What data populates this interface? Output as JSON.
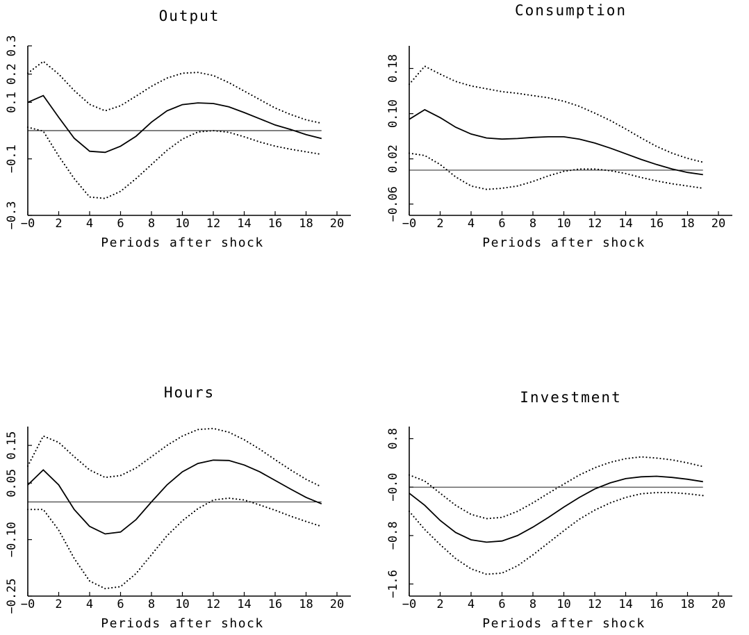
{
  "chart_data": [
    {
      "type": "line",
      "title": "Output",
      "xlabel": "Periods after shock",
      "ylabel": "",
      "xlim": [
        0,
        20
      ],
      "ylim": [
        -0.3,
        0.3
      ],
      "xticks": [
        0,
        2,
        4,
        6,
        8,
        10,
        12,
        14,
        16,
        18,
        20
      ],
      "xtick_labels": [
        "−0",
        "2",
        "4",
        "6",
        "8",
        "10",
        "12",
        "14",
        "16",
        "18",
        "20"
      ],
      "yticks": [
        -0.3,
        -0.1,
        0.1,
        0.2,
        0.3
      ],
      "ytick_labels": [
        "−0.3",
        "−0.1",
        "0.1",
        "0.2",
        "0.3"
      ],
      "zero_line": 0,
      "grid": false,
      "x": [
        0,
        1,
        2,
        3,
        4,
        5,
        6,
        7,
        8,
        9,
        10,
        11,
        12,
        13,
        14,
        15,
        16,
        17,
        18,
        19
      ],
      "series": [
        {
          "style": "solid",
          "values": [
            0.1,
            0.124,
            0.047,
            -0.027,
            -0.073,
            -0.077,
            -0.055,
            -0.02,
            0.03,
            0.07,
            0.092,
            0.098,
            0.096,
            0.084,
            0.064,
            0.042,
            0.02,
            0.004,
            -0.014,
            -0.028
          ]
        },
        {
          "style": "dotted",
          "values": [
            0.203,
            0.245,
            0.2,
            0.142,
            0.093,
            0.07,
            0.088,
            0.122,
            0.157,
            0.186,
            0.203,
            0.206,
            0.195,
            0.17,
            0.14,
            0.11,
            0.08,
            0.057,
            0.038,
            0.026
          ]
        },
        {
          "style": "dotted",
          "values": [
            0.012,
            -0.002,
            -0.09,
            -0.17,
            -0.235,
            -0.24,
            -0.215,
            -0.17,
            -0.12,
            -0.07,
            -0.03,
            -0.005,
            0.0,
            -0.006,
            -0.022,
            -0.04,
            -0.055,
            -0.066,
            -0.075,
            -0.084
          ]
        }
      ]
    },
    {
      "type": "line",
      "title": "Consumption",
      "xlabel": "Periods after shock",
      "ylabel": "",
      "xlim": [
        0,
        20
      ],
      "ylim": [
        -0.08,
        0.22
      ],
      "xticks": [
        0,
        2,
        4,
        6,
        8,
        10,
        12,
        14,
        16,
        18,
        20
      ],
      "xtick_labels": [
        "−0",
        "2",
        "4",
        "6",
        "8",
        "10",
        "12",
        "14",
        "16",
        "18",
        "20"
      ],
      "yticks": [
        -0.06,
        0.02,
        0.1,
        0.18
      ],
      "ytick_labels": [
        "−0.06",
        "0.02",
        "0.10",
        "0.18"
      ],
      "zero_line": 0,
      "grid": false,
      "x": [
        0,
        1,
        2,
        3,
        4,
        5,
        6,
        7,
        8,
        9,
        10,
        11,
        12,
        13,
        14,
        15,
        16,
        17,
        18,
        19
      ],
      "series": [
        {
          "style": "solid",
          "values": [
            0.09,
            0.107,
            0.093,
            0.076,
            0.064,
            0.057,
            0.055,
            0.056,
            0.058,
            0.059,
            0.059,
            0.055,
            0.048,
            0.039,
            0.029,
            0.019,
            0.01,
            0.002,
            -0.004,
            -0.008
          ]
        },
        {
          "style": "dotted",
          "values": [
            0.152,
            0.184,
            0.17,
            0.157,
            0.149,
            0.144,
            0.139,
            0.136,
            0.132,
            0.128,
            0.122,
            0.113,
            0.101,
            0.088,
            0.073,
            0.057,
            0.042,
            0.03,
            0.021,
            0.014
          ]
        },
        {
          "style": "dotted",
          "values": [
            0.03,
            0.026,
            0.01,
            -0.012,
            -0.028,
            -0.034,
            -0.032,
            -0.028,
            -0.02,
            -0.01,
            -0.002,
            0.002,
            0.002,
            -0.001,
            -0.006,
            -0.013,
            -0.019,
            -0.024,
            -0.028,
            -0.032
          ]
        }
      ]
    },
    {
      "type": "line",
      "title": "Hours",
      "xlabel": "Periods after shock",
      "ylabel": "",
      "xlim": [
        0,
        20
      ],
      "ylim": [
        -0.25,
        0.2
      ],
      "xticks": [
        0,
        2,
        4,
        6,
        8,
        10,
        12,
        14,
        16,
        18,
        20
      ],
      "xtick_labels": [
        "−0",
        "2",
        "4",
        "6",
        "8",
        "10",
        "12",
        "14",
        "16",
        "18",
        "20"
      ],
      "yticks": [
        -0.25,
        -0.1,
        0.05,
        0.15
      ],
      "ytick_labels": [
        "−0.25",
        "−0.10",
        "0.05",
        "0.15"
      ],
      "zero_line": 0,
      "grid": false,
      "x": [
        0,
        1,
        2,
        3,
        4,
        5,
        6,
        7,
        8,
        9,
        10,
        11,
        12,
        13,
        14,
        15,
        16,
        17,
        18,
        19
      ],
      "series": [
        {
          "style": "solid",
          "values": [
            0.045,
            0.085,
            0.045,
            -0.02,
            -0.065,
            -0.085,
            -0.08,
            -0.047,
            0.0,
            0.045,
            0.08,
            0.102,
            0.111,
            0.11,
            0.098,
            0.08,
            0.057,
            0.034,
            0.012,
            -0.005
          ]
        },
        {
          "style": "dotted",
          "values": [
            0.095,
            0.175,
            0.158,
            0.12,
            0.085,
            0.065,
            0.07,
            0.09,
            0.12,
            0.15,
            0.175,
            0.192,
            0.195,
            0.185,
            0.165,
            0.14,
            0.112,
            0.085,
            0.06,
            0.04
          ]
        },
        {
          "style": "dotted",
          "values": [
            -0.02,
            -0.02,
            -0.075,
            -0.15,
            -0.21,
            -0.23,
            -0.225,
            -0.19,
            -0.14,
            -0.09,
            -0.05,
            -0.018,
            0.005,
            0.01,
            0.005,
            -0.008,
            -0.022,
            -0.038,
            -0.052,
            -0.065
          ]
        }
      ]
    },
    {
      "type": "line",
      "title": "Investment",
      "xlabel": "Periods after shock",
      "ylabel": "",
      "xlim": [
        0,
        20
      ],
      "ylim": [
        -1.8,
        1.0
      ],
      "xticks": [
        0,
        2,
        4,
        6,
        8,
        10,
        12,
        14,
        16,
        18,
        20
      ],
      "xtick_labels": [
        "−0",
        "2",
        "4",
        "6",
        "8",
        "10",
        "12",
        "14",
        "16",
        "18",
        "20"
      ],
      "yticks": [
        -1.6,
        -0.8,
        0.0,
        0.8
      ],
      "ytick_labels": [
        "−1.6",
        "−0.8",
        "−0.0",
        "0.8"
      ],
      "zero_line": 0,
      "grid": false,
      "x": [
        0,
        1,
        2,
        3,
        4,
        5,
        6,
        7,
        8,
        9,
        10,
        11,
        12,
        13,
        14,
        15,
        16,
        17,
        18,
        19
      ],
      "series": [
        {
          "style": "solid",
          "values": [
            -0.1,
            -0.3,
            -0.55,
            -0.75,
            -0.87,
            -0.91,
            -0.89,
            -0.8,
            -0.66,
            -0.5,
            -0.33,
            -0.17,
            -0.03,
            0.07,
            0.14,
            0.17,
            0.18,
            0.16,
            0.13,
            0.09
          ]
        },
        {
          "style": "dotted",
          "values": [
            0.2,
            0.1,
            -0.1,
            -0.3,
            -0.45,
            -0.52,
            -0.5,
            -0.4,
            -0.26,
            -0.1,
            0.05,
            0.2,
            0.32,
            0.41,
            0.47,
            0.5,
            0.48,
            0.45,
            0.4,
            0.34
          ]
        },
        {
          "style": "dotted",
          "values": [
            -0.4,
            -0.7,
            -0.95,
            -1.18,
            -1.35,
            -1.44,
            -1.42,
            -1.3,
            -1.12,
            -0.92,
            -0.72,
            -0.53,
            -0.38,
            -0.26,
            -0.17,
            -0.11,
            -0.09,
            -0.09,
            -0.11,
            -0.14
          ]
        }
      ]
    }
  ]
}
